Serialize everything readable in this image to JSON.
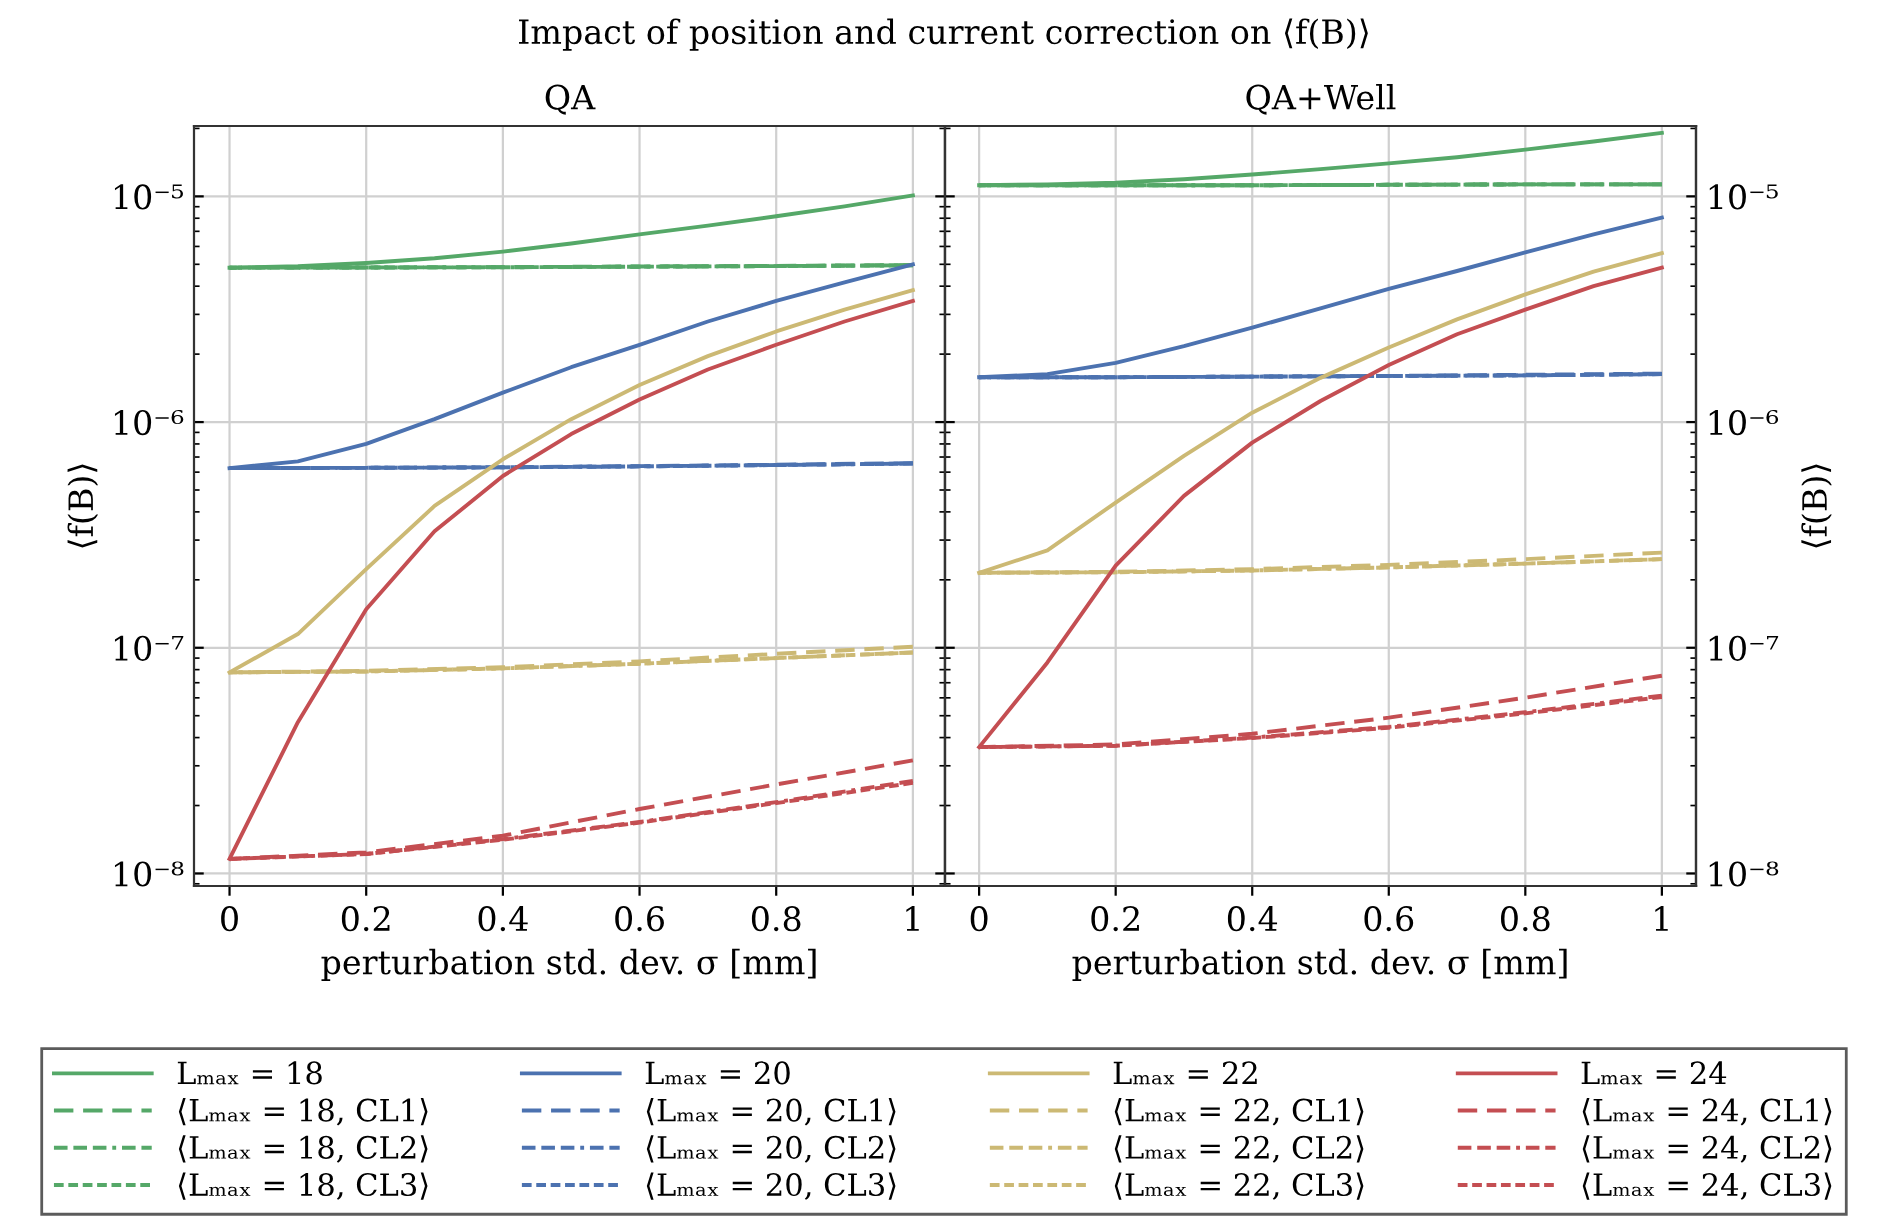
{
  "chart_data": [
    {
      "type": "line",
      "title": "Impact of position and current correction on ⟨f(B)⟩",
      "subtitle": "QA",
      "xlabel": "perturbation std. dev. σ [mm]",
      "ylabel": "⟨f(B)⟩",
      "x": [
        0,
        0.1,
        0.2,
        0.3,
        0.4,
        0.5,
        0.6,
        0.7,
        0.8,
        0.9,
        1
      ],
      "xlim": [
        -0.052,
        1.047
      ],
      "xticks": [
        0,
        0.2,
        0.4,
        0.6,
        0.8,
        1
      ],
      "ylim": [
        8.8e-09,
        2.05e-05
      ],
      "yticks": [
        {
          "value": 1e-08,
          "label": "10⁻⁸"
        },
        {
          "value": 1e-07,
          "label": "10⁻⁷"
        },
        {
          "value": 1e-06,
          "label": "10⁻⁶"
        },
        {
          "value": 1e-05,
          "label": "10⁻⁵"
        }
      ],
      "log": "y",
      "grid": true,
      "legend": "bottom",
      "series": [
        {
          "name": "Lₘₐₓ = 18",
          "color": "#55a868",
          "line_style": "solid",
          "values": [
            4.83e-06,
            4.9e-06,
            5.07e-06,
            5.32e-06,
            5.69e-06,
            6.18e-06,
            6.79e-06,
            7.42e-06,
            8.16e-06,
            9.03e-06,
            1.01e-05
          ]
        },
        {
          "name": "⟨Lₘₐₓ = 18, CL1⟩",
          "color": "#55a868",
          "line_style": "dashed",
          "x": [
            0,
            0.2,
            0.4,
            0.6,
            0.8,
            1
          ],
          "values": [
            4.83e-06,
            4.84e-06,
            4.86e-06,
            4.89e-06,
            4.92e-06,
            4.96e-06
          ]
        },
        {
          "name": "⟨Lₘₐₓ = 18, CL2⟩",
          "color": "#55a868",
          "line_style": "dashed",
          "x": [
            0,
            0.2,
            0.4,
            0.6,
            0.8,
            1
          ],
          "values": [
            4.83e-06,
            4.84e-06,
            4.85e-06,
            4.88e-06,
            4.91e-06,
            4.95e-06
          ]
        },
        {
          "name": "⟨Lₘₐₓ = 18, CL3⟩",
          "color": "#55a868",
          "line_style": "dashed",
          "x": [
            0,
            0.2,
            0.4,
            0.6,
            0.8,
            1
          ],
          "values": [
            4.83e-06,
            4.84e-06,
            4.85e-06,
            4.88e-06,
            4.91e-06,
            4.95e-06
          ]
        },
        {
          "name": "Lₘₐₓ = 20",
          "color": "#4c72b0",
          "line_style": "solid",
          "values": [
            6.25e-07,
            6.7e-07,
            8e-07,
            1.03e-06,
            1.35e-06,
            1.75e-06,
            2.2e-06,
            2.79e-06,
            3.44e-06,
            4.16e-06,
            5e-06
          ]
        },
        {
          "name": "⟨Lₘₐₓ = 20, CL1⟩",
          "color": "#4c72b0",
          "line_style": "dashed",
          "x": [
            0,
            0.2,
            0.4,
            0.6,
            0.8,
            1
          ],
          "values": [
            6.25e-07,
            6.27e-07,
            6.31e-07,
            6.38e-07,
            6.47e-07,
            6.58e-07
          ]
        },
        {
          "name": "⟨Lₘₐₓ = 20, CL2⟩",
          "color": "#4c72b0",
          "line_style": "dashed",
          "x": [
            0,
            0.2,
            0.4,
            0.6,
            0.8,
            1
          ],
          "values": [
            6.25e-07,
            6.27e-07,
            6.3e-07,
            6.36e-07,
            6.45e-07,
            6.55e-07
          ]
        },
        {
          "name": "⟨Lₘₐₓ = 20, CL3⟩",
          "color": "#4c72b0",
          "line_style": "dashed",
          "x": [
            0,
            0.2,
            0.4,
            0.6,
            0.8,
            1
          ],
          "values": [
            6.25e-07,
            6.27e-07,
            6.3e-07,
            6.36e-07,
            6.45e-07,
            6.55e-07
          ]
        },
        {
          "name": "Lₘₐₓ = 22",
          "color": "#ccb974",
          "line_style": "solid",
          "values": [
            7.78e-08,
            1.15e-07,
            2.23e-07,
            4.25e-07,
            6.84e-07,
            1.03e-06,
            1.46e-06,
            1.96e-06,
            2.52e-06,
            3.15e-06,
            3.84e-06
          ]
        },
        {
          "name": "⟨Lₘₐₓ = 22, CL1⟩",
          "color": "#ccb974",
          "line_style": "dashed",
          "x": [
            0,
            0.2,
            0.4,
            0.6,
            0.8,
            1
          ],
          "values": [
            7.78e-08,
            7.9e-08,
            8.2e-08,
            8.7e-08,
            9.4e-08,
            1.01e-07
          ]
        },
        {
          "name": "⟨Lₘₐₓ = 22, CL2⟩",
          "color": "#ccb974",
          "line_style": "dashed",
          "x": [
            0,
            0.2,
            0.4,
            0.6,
            0.8,
            1
          ],
          "values": [
            7.78e-08,
            7.85e-08,
            8.1e-08,
            8.5e-08,
            9e-08,
            9.53e-08
          ]
        },
        {
          "name": "⟨Lₘₐₓ = 22, CL3⟩",
          "color": "#ccb974",
          "line_style": "dashed",
          "x": [
            0,
            0.2,
            0.4,
            0.6,
            0.8,
            1
          ],
          "values": [
            7.78e-08,
            7.85e-08,
            8.1e-08,
            8.5e-08,
            9e-08,
            9.53e-08
          ]
        },
        {
          "name": "Lₘₐₓ = 24",
          "color": "#c44e52",
          "line_style": "solid",
          "values": [
            1.16e-08,
            4.68e-08,
            1.48e-07,
            3.28e-07,
            5.77e-07,
            8.85e-07,
            1.26e-06,
            1.71e-06,
            2.2e-06,
            2.79e-06,
            3.44e-06
          ]
        },
        {
          "name": "⟨Lₘₐₓ = 24, CL1⟩",
          "color": "#c44e52",
          "line_style": "dashed",
          "x": [
            0,
            0.2,
            0.4,
            0.6,
            0.8,
            1
          ],
          "values": [
            1.16e-08,
            1.24e-08,
            1.47e-08,
            1.93e-08,
            2.48e-08,
            3.17e-08
          ]
        },
        {
          "name": "⟨Lₘₐₓ = 24, CL2⟩",
          "color": "#c44e52",
          "line_style": "dashed",
          "x": [
            0,
            0.2,
            0.4,
            0.6,
            0.8,
            1
          ],
          "values": [
            1.16e-08,
            1.22e-08,
            1.42e-08,
            1.69e-08,
            2.07e-08,
            2.57e-08
          ]
        },
        {
          "name": "⟨Lₘₐₓ = 24, CL3⟩",
          "color": "#c44e52",
          "line_style": "dashed",
          "x": [
            0,
            0.2,
            0.4,
            0.6,
            0.8,
            1
          ],
          "values": [
            1.16e-08,
            1.22e-08,
            1.41e-08,
            1.68e-08,
            2.05e-08,
            2.52e-08
          ]
        }
      ]
    },
    {
      "type": "line",
      "subtitle": "QA+Well",
      "xlabel": "perturbation std. dev. σ [mm]",
      "y2label": "⟨f(B)⟩",
      "x": [
        0,
        0.1,
        0.2,
        0.3,
        0.4,
        0.5,
        0.6,
        0.7,
        0.8,
        0.9,
        1
      ],
      "xlim": [
        -0.05,
        1.05
      ],
      "xticks": [
        0,
        0.2,
        0.4,
        0.6,
        0.8,
        1
      ],
      "y2lim": [
        8.8e-09,
        2.05e-05
      ],
      "y2ticks": [
        {
          "value": 1e-08,
          "label": "10⁻⁸"
        },
        {
          "value": 1e-07,
          "label": "10⁻⁷"
        },
        {
          "value": 1e-06,
          "label": "10⁻⁶"
        },
        {
          "value": 1e-05,
          "label": "10⁻⁵"
        }
      ],
      "log": "y2",
      "grid": true,
      "legend": "bottom",
      "series": [
        {
          "name": "Lₘₐₓ = 18",
          "color": "#55a868",
          "line_style": "solid",
          "axis": "y2",
          "values": [
            1.12e-05,
            1.13e-05,
            1.15e-05,
            1.19e-05,
            1.25e-05,
            1.32e-05,
            1.4e-05,
            1.49e-05,
            1.61e-05,
            1.75e-05,
            1.91e-05
          ]
        },
        {
          "name": "⟨Lₘₐₓ = 18, CL1⟩",
          "color": "#55a868",
          "line_style": "dashed",
          "axis": "y2",
          "x": [
            0,
            0.2,
            0.4,
            0.6,
            0.8,
            1
          ],
          "values": [
            1.12e-05,
            1.12e-05,
            1.12e-05,
            1.125e-05,
            1.13e-05,
            1.13e-05
          ]
        },
        {
          "name": "⟨Lₘₐₓ = 18, CL2⟩",
          "color": "#55a868",
          "line_style": "dashed",
          "axis": "y2",
          "x": [
            0,
            0.2,
            0.4,
            0.6,
            0.8,
            1
          ],
          "values": [
            1.12e-05,
            1.12e-05,
            1.12e-05,
            1.125e-05,
            1.13e-05,
            1.13e-05
          ]
        },
        {
          "name": "⟨Lₘₐₓ = 18, CL3⟩",
          "color": "#55a868",
          "line_style": "dashed",
          "axis": "y2",
          "x": [
            0,
            0.2,
            0.4,
            0.6,
            0.8,
            1
          ],
          "values": [
            1.12e-05,
            1.12e-05,
            1.12e-05,
            1.125e-05,
            1.13e-05,
            1.13e-05
          ]
        },
        {
          "name": "Lₘₐₓ = 20",
          "color": "#4c72b0",
          "line_style": "solid",
          "axis": "y2",
          "values": [
            1.58e-06,
            1.63e-06,
            1.83e-06,
            2.17e-06,
            2.62e-06,
            3.19e-06,
            3.89e-06,
            4.67e-06,
            5.65e-06,
            6.79e-06,
            8.05e-06
          ]
        },
        {
          "name": "⟨Lₘₐₓ = 20, CL1⟩",
          "color": "#4c72b0",
          "line_style": "dashed",
          "axis": "y2",
          "x": [
            0,
            0.2,
            0.4,
            0.6,
            0.8,
            1
          ],
          "values": [
            1.58e-06,
            1.58e-06,
            1.59e-06,
            1.6e-06,
            1.62e-06,
            1.64e-06
          ]
        },
        {
          "name": "⟨Lₘₐₓ = 20, CL2⟩",
          "color": "#4c72b0",
          "line_style": "dashed",
          "axis": "y2",
          "x": [
            0,
            0.2,
            0.4,
            0.6,
            0.8,
            1
          ],
          "values": [
            1.58e-06,
            1.58e-06,
            1.59e-06,
            1.6e-06,
            1.61e-06,
            1.63e-06
          ]
        },
        {
          "name": "⟨Lₘₐₓ = 20, CL3⟩",
          "color": "#4c72b0",
          "line_style": "dashed",
          "axis": "y2",
          "x": [
            0,
            0.2,
            0.4,
            0.6,
            0.8,
            1
          ],
          "values": [
            1.58e-06,
            1.58e-06,
            1.59e-06,
            1.6e-06,
            1.61e-06,
            1.63e-06
          ]
        },
        {
          "name": "Lₘₐₓ = 22",
          "color": "#ccb974",
          "line_style": "solid",
          "axis": "y2",
          "values": [
            2.15e-07,
            2.7e-07,
            4.4e-07,
            7.08e-07,
            1.1e-06,
            1.57e-06,
            2.14e-06,
            2.85e-06,
            3.68e-06,
            4.64e-06,
            5.61e-06
          ]
        },
        {
          "name": "⟨Lₘₐₓ = 22, CL1⟩",
          "color": "#ccb974",
          "line_style": "dashed",
          "axis": "y2",
          "x": [
            0,
            0.2,
            0.4,
            0.6,
            0.8,
            1
          ],
          "values": [
            2.15e-07,
            2.17e-07,
            2.23e-07,
            2.33e-07,
            2.47e-07,
            2.64e-07
          ]
        },
        {
          "name": "⟨Lₘₐₓ = 22, CL2⟩",
          "color": "#ccb974",
          "line_style": "dashed",
          "axis": "y2",
          "x": [
            0,
            0.2,
            0.4,
            0.6,
            0.8,
            1
          ],
          "values": [
            2.15e-07,
            2.16e-07,
            2.2e-07,
            2.27e-07,
            2.36e-07,
            2.47e-07
          ]
        },
        {
          "name": "⟨Lₘₐₓ = 22, CL3⟩",
          "color": "#ccb974",
          "line_style": "dashed",
          "axis": "y2",
          "x": [
            0,
            0.2,
            0.4,
            0.6,
            0.8,
            1
          ],
          "values": [
            2.15e-07,
            2.16e-07,
            2.2e-07,
            2.27e-07,
            2.36e-07,
            2.47e-07
          ]
        },
        {
          "name": "Lₘₐₓ = 24",
          "color": "#c44e52",
          "line_style": "solid",
          "axis": "y2",
          "values": [
            3.63e-08,
            8.61e-08,
            2.31e-07,
            4.71e-07,
            8.11e-07,
            1.24e-06,
            1.79e-06,
            2.45e-06,
            3.15e-06,
            4e-06,
            4.83e-06
          ]
        },
        {
          "name": "⟨Lₘₐₓ = 24, CL1⟩",
          "color": "#c44e52",
          "line_style": "dashed",
          "axis": "y2",
          "x": [
            0,
            0.2,
            0.4,
            0.6,
            0.8,
            1
          ],
          "values": [
            3.63e-08,
            3.73e-08,
            4.16e-08,
            4.9e-08,
            6.01e-08,
            7.52e-08
          ]
        },
        {
          "name": "⟨Lₘₐₓ = 24, CL2⟩",
          "color": "#c44e52",
          "line_style": "dashed",
          "axis": "y2",
          "x": [
            0,
            0.2,
            0.4,
            0.6,
            0.8,
            1
          ],
          "values": [
            3.63e-08,
            3.68e-08,
            4e-08,
            4.46e-08,
            5.18e-08,
            6.14e-08
          ]
        },
        {
          "name": "⟨Lₘₐₓ = 24, CL3⟩",
          "color": "#c44e52",
          "line_style": "dashed",
          "axis": "y2",
          "x": [
            0,
            0.2,
            0.4,
            0.6,
            0.8,
            1
          ],
          "values": [
            3.63e-08,
            3.68e-08,
            3.98e-08,
            4.42e-08,
            5.12e-08,
            6.05e-08
          ]
        }
      ]
    }
  ]
}
